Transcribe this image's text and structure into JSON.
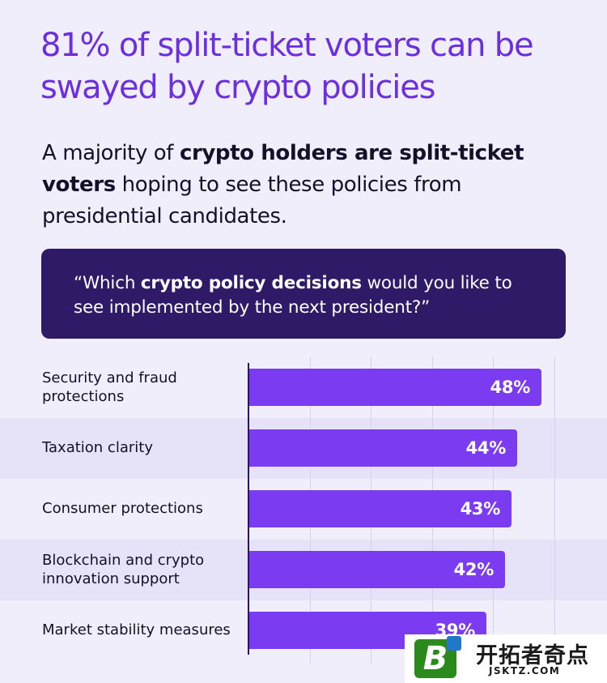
{
  "headline": "81% of split-ticket voters can be swayed by crypto policies",
  "subhead": {
    "pre": "A majority of ",
    "bold": "crypto holders are split-ticket voters",
    "post": " hoping to see these policies from presidential candidates."
  },
  "question": {
    "pre": "“Which ",
    "bold": "crypto policy decisions",
    "post": " would you like to see implemented by the next president?”"
  },
  "chart_data": {
    "type": "bar",
    "orientation": "horizontal",
    "categories": [
      "Security and fraud protections",
      "Taxation clarity",
      "Consumer protections",
      "Blockchain and crypto innovation support",
      "Market stability measures"
    ],
    "values": [
      48,
      44,
      43,
      42,
      39
    ],
    "value_labels": [
      "48%",
      "44%",
      "43%",
      "42%",
      "39%"
    ],
    "unit": "%",
    "xlim": [
      0,
      58
    ],
    "grid": true,
    "bar_color": "#7b3bf0"
  },
  "watermark": {
    "logo_letter": "B",
    "name": "开拓者奇点",
    "url": "JSKTZ.COM"
  },
  "colors": {
    "background": "#f0eefb",
    "headline": "#6b2fe0",
    "question_box": "#2e1a66",
    "band": "#e6e2f7"
  }
}
